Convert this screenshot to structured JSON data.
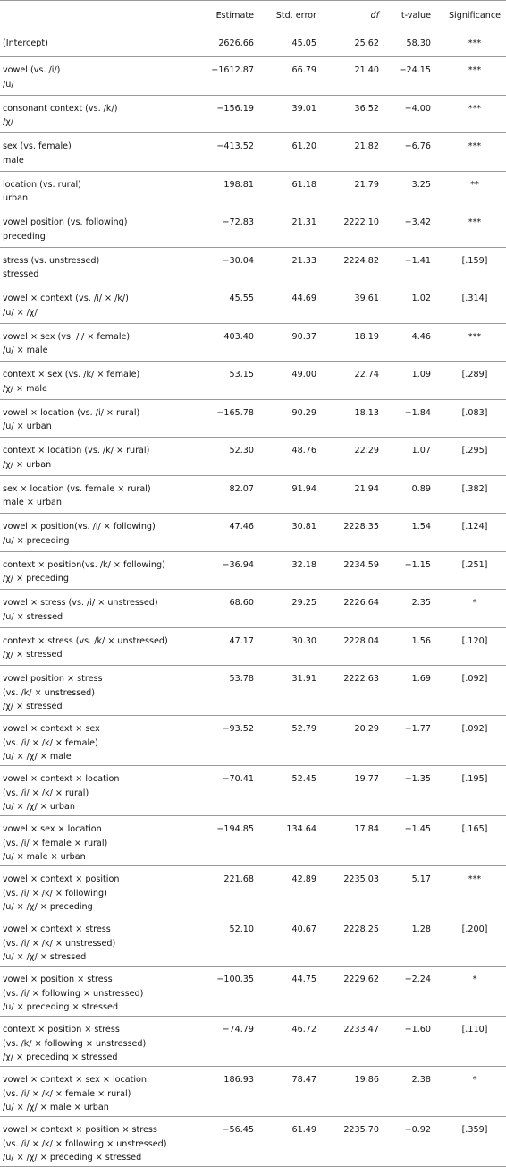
{
  "table": {
    "header": [
      "Estimate",
      "Std. error",
      "df",
      "t-value",
      "Significance"
    ],
    "rows": [
      {
        "label": [
          "(Intercept)"
        ],
        "cells": [
          "2626.66",
          "45.05",
          "25.62",
          "58.30",
          "***"
        ]
      },
      {
        "label": [
          "vowel (vs. /i/)",
          "/u/"
        ],
        "cells": [
          "−1612.87",
          "66.79",
          "21.40",
          "−24.15",
          "***"
        ]
      },
      {
        "label": [
          "consonant context (vs. /k/)",
          "/χ/"
        ],
        "cells": [
          "−156.19",
          "39.01",
          "36.52",
          "−4.00",
          "***"
        ]
      },
      {
        "label": [
          "sex (vs. female)",
          "male"
        ],
        "cells": [
          "−413.52",
          "61.20",
          "21.82",
          "−6.76",
          "***"
        ]
      },
      {
        "label": [
          "location (vs. rural)",
          "urban"
        ],
        "cells": [
          "198.81",
          "61.18",
          "21.79",
          "3.25",
          "**"
        ]
      },
      {
        "label": [
          "vowel position (vs. following)",
          "preceding"
        ],
        "cells": [
          "−72.83",
          "21.31",
          "2222.10",
          "−3.42",
          "***"
        ]
      },
      {
        "label": [
          "stress (vs. unstressed)",
          "stressed"
        ],
        "cells": [
          "−30.04",
          "21.33",
          "2224.82",
          "−1.41",
          "[.159]"
        ]
      },
      {
        "label": [
          "vowel × context (vs. /i/ × /k/)",
          "/u/ × /χ/"
        ],
        "cells": [
          "45.55",
          "44.69",
          "39.61",
          "1.02",
          "[.314]"
        ]
      },
      {
        "label": [
          "vowel × sex (vs. /i/ × female)",
          "/u/ × male"
        ],
        "cells": [
          "403.40",
          "90.37",
          "18.19",
          "4.46",
          "***"
        ]
      },
      {
        "label": [
          "context × sex (vs. /k/ × female)",
          "/χ/ × male"
        ],
        "cells": [
          "53.15",
          "49.00",
          "22.74",
          "1.09",
          "[.289]"
        ]
      },
      {
        "label": [
          "vowel × location (vs. /i/ × rural)",
          "/u/ × urban"
        ],
        "cells": [
          "−165.78",
          "90.29",
          "18.13",
          "−1.84",
          "[.083]"
        ]
      },
      {
        "label": [
          "context × location (vs. /k/ × rural)",
          "/χ/ × urban"
        ],
        "cells": [
          "52.30",
          "48.76",
          "22.29",
          "1.07",
          "[.295]"
        ]
      },
      {
        "label": [
          "sex × location (vs. female × rural)",
          "male × urban"
        ],
        "cells": [
          "82.07",
          "91.94",
          "21.94",
          "0.89",
          "[.382]"
        ]
      },
      {
        "label": [
          "vowel × position(vs. /i/ × following)",
          "/u/ × preceding"
        ],
        "cells": [
          "47.46",
          "30.81",
          "2228.35",
          "1.54",
          "[.124]"
        ]
      },
      {
        "label": [
          "context × position(vs. /k/ × following)",
          "/χ/ × preceding"
        ],
        "cells": [
          "−36.94",
          "32.18",
          "2234.59",
          "−1.15",
          "[.251]"
        ]
      },
      {
        "label": [
          "vowel × stress (vs. /i/ × unstressed)",
          "/u/ × stressed"
        ],
        "cells": [
          "68.60",
          "29.25",
          "2226.64",
          "2.35",
          "*"
        ]
      },
      {
        "label": [
          "context × stress (vs. /k/ × unstressed)",
          "/χ/ × stressed"
        ],
        "cells": [
          "47.17",
          "30.30",
          "2228.04",
          "1.56",
          "[.120]"
        ]
      },
      {
        "label": [
          "vowel position × stress",
          "(vs. /k/ × unstressed)",
          "/χ/ × stressed"
        ],
        "cells": [
          "53.78",
          "31.91",
          "2222.63",
          "1.69",
          "[.092]"
        ]
      },
      {
        "label": [
          "vowel × context × sex",
          "(vs. /i/ × /k/ × female)",
          "/u/ × /χ/ × male"
        ],
        "cells": [
          "−93.52",
          "52.79",
          "20.29",
          "−1.77",
          "[.092]"
        ]
      },
      {
        "label": [
          "vowel × context × location",
          "(vs. /i/ × /k/ × rural)",
          "/u/ × /χ/ × urban"
        ],
        "cells": [
          "−70.41",
          "52.45",
          "19.77",
          "−1.35",
          "[.195]"
        ]
      },
      {
        "label": [
          "vowel × sex × location",
          "(vs. /i/ × female × rural)",
          "/u/ × male × urban"
        ],
        "cells": [
          "−194.85",
          "134.64",
          "17.84",
          "−1.45",
          "[.165]"
        ]
      },
      {
        "label": [
          "vowel × context × position",
          "(vs. /i/ × /k/ × following)",
          "/u/ × /χ/ × preceding"
        ],
        "cells": [
          "221.68",
          "42.89",
          "2235.03",
          "5.17",
          "***"
        ]
      },
      {
        "label": [
          "vowel × context × stress",
          "(vs. /i/ × /k/ × unstressed)",
          "/u/ × /χ/ × stressed"
        ],
        "cells": [
          "52.10",
          "40.67",
          "2228.25",
          "1.28",
          "[.200]"
        ]
      },
      {
        "label": [
          "vowel × position × stress",
          "(vs. /i/ × following × unstressed)",
          "/u/ × preceding × stressed"
        ],
        "cells": [
          "−100.35",
          "44.75",
          "2229.62",
          "−2.24",
          "*"
        ]
      },
      {
        "label": [
          "context × position × stress",
          "(vs. /k/ × following × unstressed)",
          "/χ/ × preceding × stressed"
        ],
        "cells": [
          "−74.79",
          "46.72",
          "2233.47",
          "−1.60",
          "[.110]"
        ]
      },
      {
        "label": [
          "vowel × context × sex × location",
          "(vs. /i/ × /k/ × female × rural)",
          "/u/ × /χ/ × male × urban"
        ],
        "cells": [
          "186.93",
          "78.47",
          "19.86",
          "2.38",
          "*"
        ]
      },
      {
        "label": [
          "vowel × context × position × stress",
          "(vs. /i/ × /k/ × following × unstressed)",
          "/u/ × /χ/ × preceding × stressed"
        ],
        "cells": [
          "−56.45",
          "61.49",
          "2235.70",
          "−0.92",
          "[.359]"
        ]
      }
    ]
  }
}
